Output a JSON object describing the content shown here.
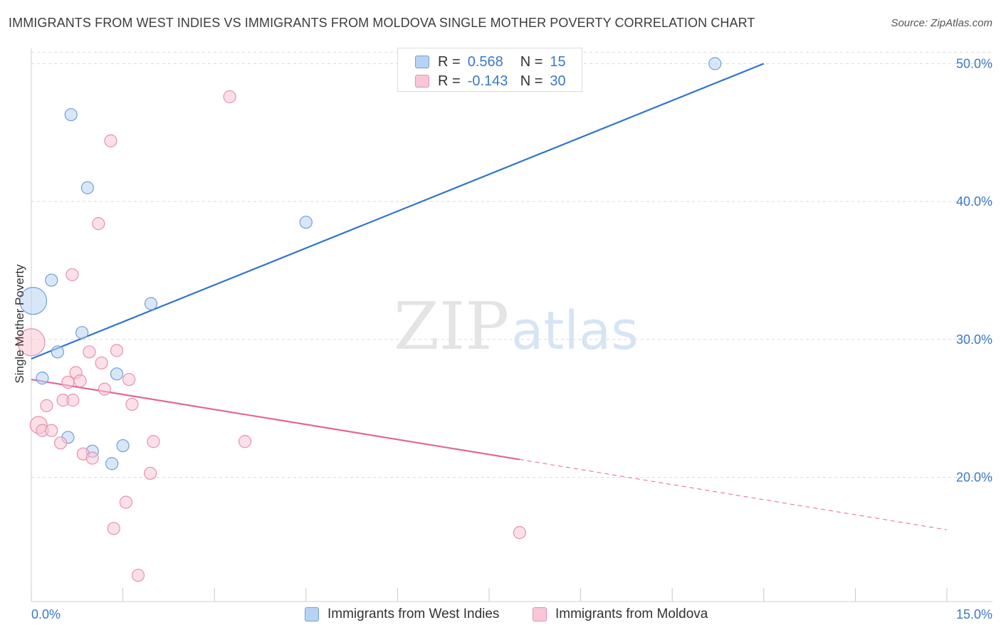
{
  "title": "IMMIGRANTS FROM WEST INDIES VS IMMIGRANTS FROM MOLDOVA SINGLE MOTHER POVERTY CORRELATION CHART",
  "source": "Source: ZipAtlas.com",
  "watermark": {
    "zip": "ZIP",
    "atlas": "atlas"
  },
  "colors": {
    "blue_fill": "#b8d3f2",
    "blue_stroke": "#6f9fd8",
    "blue_line": "#2f74cf",
    "pink_fill": "#f8c6d6",
    "pink_stroke": "#e890ad",
    "pink_line": "#e2678f",
    "grid": "#d9d9d9",
    "axis_text": "#3a78c8"
  },
  "legend_top": {
    "rows": [
      {
        "r_label": "R =",
        "r_value": "0.568",
        "n_label": "N =",
        "n_value": "15"
      },
      {
        "r_label": "R =",
        "r_value": "-0.143",
        "n_label": "N =",
        "n_value": "30"
      }
    ]
  },
  "legend_bottom": [
    "Immigrants from West Indies",
    "Immigrants from Moldova"
  ],
  "chart_data": {
    "type": "scatter",
    "title": "IMMIGRANTS FROM WEST INDIES VS IMMIGRANTS FROM MOLDOVA SINGLE MOTHER POVERTY CORRELATION CHART",
    "xlabel": "",
    "ylabel": "Single Mother Poverty",
    "xlim": [
      0,
      15
    ],
    "ylim": [
      11,
      51
    ],
    "x_tick_labels": [
      "0.0%",
      "15.0%"
    ],
    "y_ticks": [
      20,
      30,
      40,
      50
    ],
    "y_tick_labels": [
      "20.0%",
      "30.0%",
      "40.0%",
      "50.0%"
    ],
    "series": [
      {
        "name": "Immigrants from West Indies",
        "r": 0.568,
        "n": 15,
        "points": [
          {
            "x": 0.03,
            "y": 32.8,
            "size": "large"
          },
          {
            "x": 0.65,
            "y": 46.3
          },
          {
            "x": 0.92,
            "y": 41.0
          },
          {
            "x": 0.33,
            "y": 34.3
          },
          {
            "x": 0.83,
            "y": 30.5
          },
          {
            "x": 0.43,
            "y": 29.1
          },
          {
            "x": 0.18,
            "y": 27.2
          },
          {
            "x": 1.4,
            "y": 27.5
          },
          {
            "x": 1.96,
            "y": 32.6
          },
          {
            "x": 4.5,
            "y": 38.5
          },
          {
            "x": 0.6,
            "y": 22.9
          },
          {
            "x": 1.0,
            "y": 21.9
          },
          {
            "x": 1.5,
            "y": 22.3
          },
          {
            "x": 1.32,
            "y": 21.0
          },
          {
            "x": 11.2,
            "y": 50.0
          }
        ],
        "trend": {
          "x0": 0,
          "y0": 28.6,
          "x1": 12.0,
          "y1": 50.0
        }
      },
      {
        "name": "Immigrants from Moldova",
        "r": -0.143,
        "n": 30,
        "points": [
          {
            "x": 0.0,
            "y": 29.8,
            "size": "large"
          },
          {
            "x": 3.25,
            "y": 47.6
          },
          {
            "x": 1.3,
            "y": 44.4
          },
          {
            "x": 1.1,
            "y": 38.4
          },
          {
            "x": 0.67,
            "y": 34.7
          },
          {
            "x": 0.95,
            "y": 29.1
          },
          {
            "x": 1.4,
            "y": 29.2
          },
          {
            "x": 1.15,
            "y": 28.3
          },
          {
            "x": 0.73,
            "y": 27.6
          },
          {
            "x": 0.6,
            "y": 26.9
          },
          {
            "x": 0.8,
            "y": 27.0
          },
          {
            "x": 1.6,
            "y": 27.1
          },
          {
            "x": 1.2,
            "y": 26.4
          },
          {
            "x": 0.52,
            "y": 25.6
          },
          {
            "x": 0.68,
            "y": 25.6
          },
          {
            "x": 0.25,
            "y": 25.2
          },
          {
            "x": 1.65,
            "y": 25.3
          },
          {
            "x": 0.12,
            "y": 23.8,
            "size": "medium"
          },
          {
            "x": 0.18,
            "y": 23.4
          },
          {
            "x": 0.33,
            "y": 23.4
          },
          {
            "x": 0.48,
            "y": 22.5
          },
          {
            "x": 2.0,
            "y": 22.6
          },
          {
            "x": 3.5,
            "y": 22.6
          },
          {
            "x": 0.85,
            "y": 21.7
          },
          {
            "x": 1.0,
            "y": 21.4
          },
          {
            "x": 1.95,
            "y": 20.3
          },
          {
            "x": 1.55,
            "y": 18.2
          },
          {
            "x": 1.35,
            "y": 16.3
          },
          {
            "x": 8.0,
            "y": 16.0
          },
          {
            "x": 1.75,
            "y": 12.9
          }
        ],
        "trend": {
          "x0": 0,
          "y0": 27.1,
          "x1": 8.0,
          "y1": 21.3,
          "dash_x1": 15,
          "dash_y1": 16.2
        }
      }
    ]
  }
}
